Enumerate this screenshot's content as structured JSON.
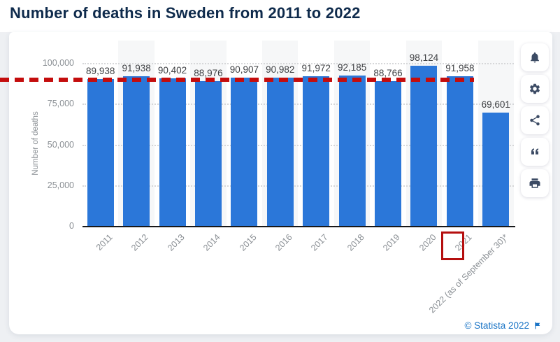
{
  "title": "Number of deaths in Sweden from 2011 to 2022",
  "chart_data": {
    "type": "bar",
    "title": "Number of deaths in Sweden from 2011 to 2022",
    "categories": [
      "2011",
      "2012",
      "2013",
      "2014",
      "2015",
      "2016",
      "2017",
      "2018",
      "2019",
      "2020",
      "2021",
      "2022 (as of September 30)*"
    ],
    "values": [
      89938,
      91938,
      90402,
      88976,
      90907,
      90982,
      91972,
      92185,
      88766,
      98124,
      91958,
      69601
    ],
    "value_labels": [
      "89,938",
      "91,938",
      "90,402",
      "88,976",
      "90,907",
      "90,982",
      "91,972",
      "92,185",
      "88,766",
      "98,124",
      "91,958",
      "69,601"
    ],
    "xlabel": "",
    "ylabel": "Number of deaths",
    "ylim": [
      0,
      113000
    ],
    "yticks": [
      0,
      25000,
      50000,
      75000,
      100000
    ],
    "ytick_labels": [
      "0",
      "25,000",
      "50,000",
      "75,000",
      "100,000"
    ],
    "grid": "horizontal-dotted",
    "legend": "none",
    "bar_color": "#2b77d9",
    "band_color": "#f6f7f8",
    "reference_line": {
      "value": 91958,
      "style": "dashed",
      "color": "#c40d0d"
    },
    "annotation_box": {
      "category": "2021",
      "category_index": 10,
      "color": "#b50f0f"
    }
  },
  "toolbar": {
    "buttons": [
      {
        "id": "notifications",
        "icon": "bell"
      },
      {
        "id": "settings",
        "icon": "gear"
      },
      {
        "id": "share",
        "icon": "share"
      },
      {
        "id": "cite",
        "icon": "quote"
      },
      {
        "id": "print",
        "icon": "printer"
      }
    ]
  },
  "footer": {
    "credit": "© Statista 2022",
    "flag_icon": "flag"
  }
}
